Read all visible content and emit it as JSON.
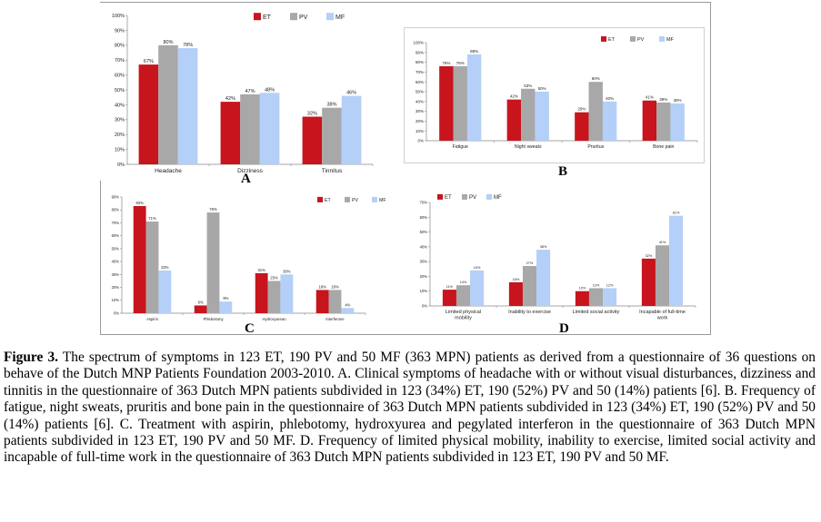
{
  "figure": {
    "panel_letters": [
      "A",
      "B",
      "C",
      "D"
    ],
    "caption": {
      "label": "Figure 3.",
      "text": "The spectrum of symptoms in 123 ET, 190 PV and 50 MF (363 MPN) patients as derived from a questionnaire of 36 questions on behave of the Dutch MNP Patients Foundation 2003-2010. A. Clinical symptoms of headache with or without visual disturbances, dizziness and tinnitis in the questionnaire of 363 Dutch MPN patients subdivided in 123 (34%) ET, 190 (52%) PV and 50 (14%) patients [6]. B. Frequency of fatigue, night sweats, pruritis and bone pain in the questionnaire of 363 Dutch MPN patients subdivided in 123 (34%) ET, 190 (52%) PV and 50 (14%) patients [6]. C. Treatment with aspirin, phlebotomy, hydroxyurea and pegylated interferon in the questionnaire of 363 Dutch MPN patients subdivided in 123 ET, 190 PV and 50 MF. D. Frequency of limited physical mobility, inability to exercise, limited social activity and incapable of full-time work in the questionnaire of 363 Dutch MPN patients subdivided in 123 ET, 190 PV and 50 MF."
    }
  },
  "colors": {
    "ET": "#c8141c",
    "PV": "#a8a8a8",
    "MF": "#b4cff8"
  },
  "chart_data": [
    {
      "id": "A",
      "type": "bar",
      "categories": [
        "Headache",
        "Dizziness",
        "Tinnitus"
      ],
      "series": [
        {
          "name": "ET",
          "values": [
            67,
            42,
            32
          ],
          "labels": [
            "67%",
            "42%",
            "32%"
          ]
        },
        {
          "name": "PV",
          "values": [
            80,
            47,
            38
          ],
          "labels": [
            "80%",
            "47%",
            "38%"
          ]
        },
        {
          "name": "MF",
          "values": [
            78,
            48,
            46
          ],
          "labels": [
            "78%",
            "48%",
            "46%"
          ]
        }
      ],
      "ylim": [
        0,
        100
      ],
      "yticks": [
        "0%",
        "10%",
        "20%",
        "30%",
        "40%",
        "50%",
        "60%",
        "70%",
        "80%",
        "90%",
        "100%"
      ],
      "grid": false,
      "legend": "top-right"
    },
    {
      "id": "B",
      "type": "bar",
      "categories": [
        "Fatigue",
        "Night sweats",
        "Pruritus",
        "Bone pain"
      ],
      "series": [
        {
          "name": "ET",
          "values": [
            76,
            42,
            29,
            41
          ],
          "labels": [
            "76%",
            "42%",
            "29%",
            "41%"
          ]
        },
        {
          "name": "PV",
          "values": [
            76,
            53,
            60,
            39
          ],
          "labels": [
            "76%",
            "53%",
            "60%",
            "39%"
          ]
        },
        {
          "name": "MF",
          "values": [
            88,
            50,
            40,
            38
          ],
          "labels": [
            "88%",
            "50%",
            "40%",
            "38%"
          ]
        }
      ],
      "ylim": [
        0,
        100
      ],
      "yticks": [
        "0%",
        "10%",
        "20%",
        "30%",
        "40%",
        "50%",
        "60%",
        "70%",
        "80%",
        "90%",
        "100%"
      ],
      "grid": false,
      "legend": "top-right"
    },
    {
      "id": "C",
      "type": "bar",
      "categories": [
        "Aspirin",
        "Phlebotomy",
        "Hydroxyurean",
        "Interferone"
      ],
      "series": [
        {
          "name": "ET",
          "values": [
            83,
            6,
            31,
            18
          ],
          "labels": [
            "83%",
            "6%",
            "31%",
            "18%"
          ]
        },
        {
          "name": "PV",
          "values": [
            71,
            78,
            25,
            18
          ],
          "labels": [
            "71%",
            "78%",
            "25%",
            "18%"
          ]
        },
        {
          "name": "MF",
          "values": [
            33,
            9,
            30,
            4
          ],
          "labels": [
            "33%",
            "9%",
            "30%",
            "4%"
          ]
        }
      ],
      "ylim": [
        0,
        90
      ],
      "yticks": [
        "0%",
        "10%",
        "20%",
        "30%",
        "40%",
        "50%",
        "60%",
        "70%",
        "80%",
        "90%"
      ],
      "grid": false,
      "legend": "top-right"
    },
    {
      "id": "D",
      "type": "bar",
      "categories": [
        "Limited physical mobility",
        "Inability to exercise",
        "Limited social activity",
        "Incapable of full-time work"
      ],
      "series": [
        {
          "name": "ET",
          "values": [
            11,
            16,
            10,
            32
          ],
          "labels": [
            "11%",
            "16%",
            "10%",
            "32%"
          ]
        },
        {
          "name": "PV",
          "values": [
            14,
            27,
            12,
            41
          ],
          "labels": [
            "14%",
            "27%",
            "12%",
            "41%"
          ]
        },
        {
          "name": "MF",
          "values": [
            24,
            38,
            12,
            61
          ],
          "labels": [
            "24%",
            "38%",
            "12%",
            "61%"
          ]
        }
      ],
      "ylim": [
        0,
        70
      ],
      "yticks": [
        "0%",
        "10%",
        "20%",
        "30%",
        "40%",
        "50%",
        "60%",
        "70%"
      ],
      "grid": false,
      "legend": "top-left"
    }
  ]
}
